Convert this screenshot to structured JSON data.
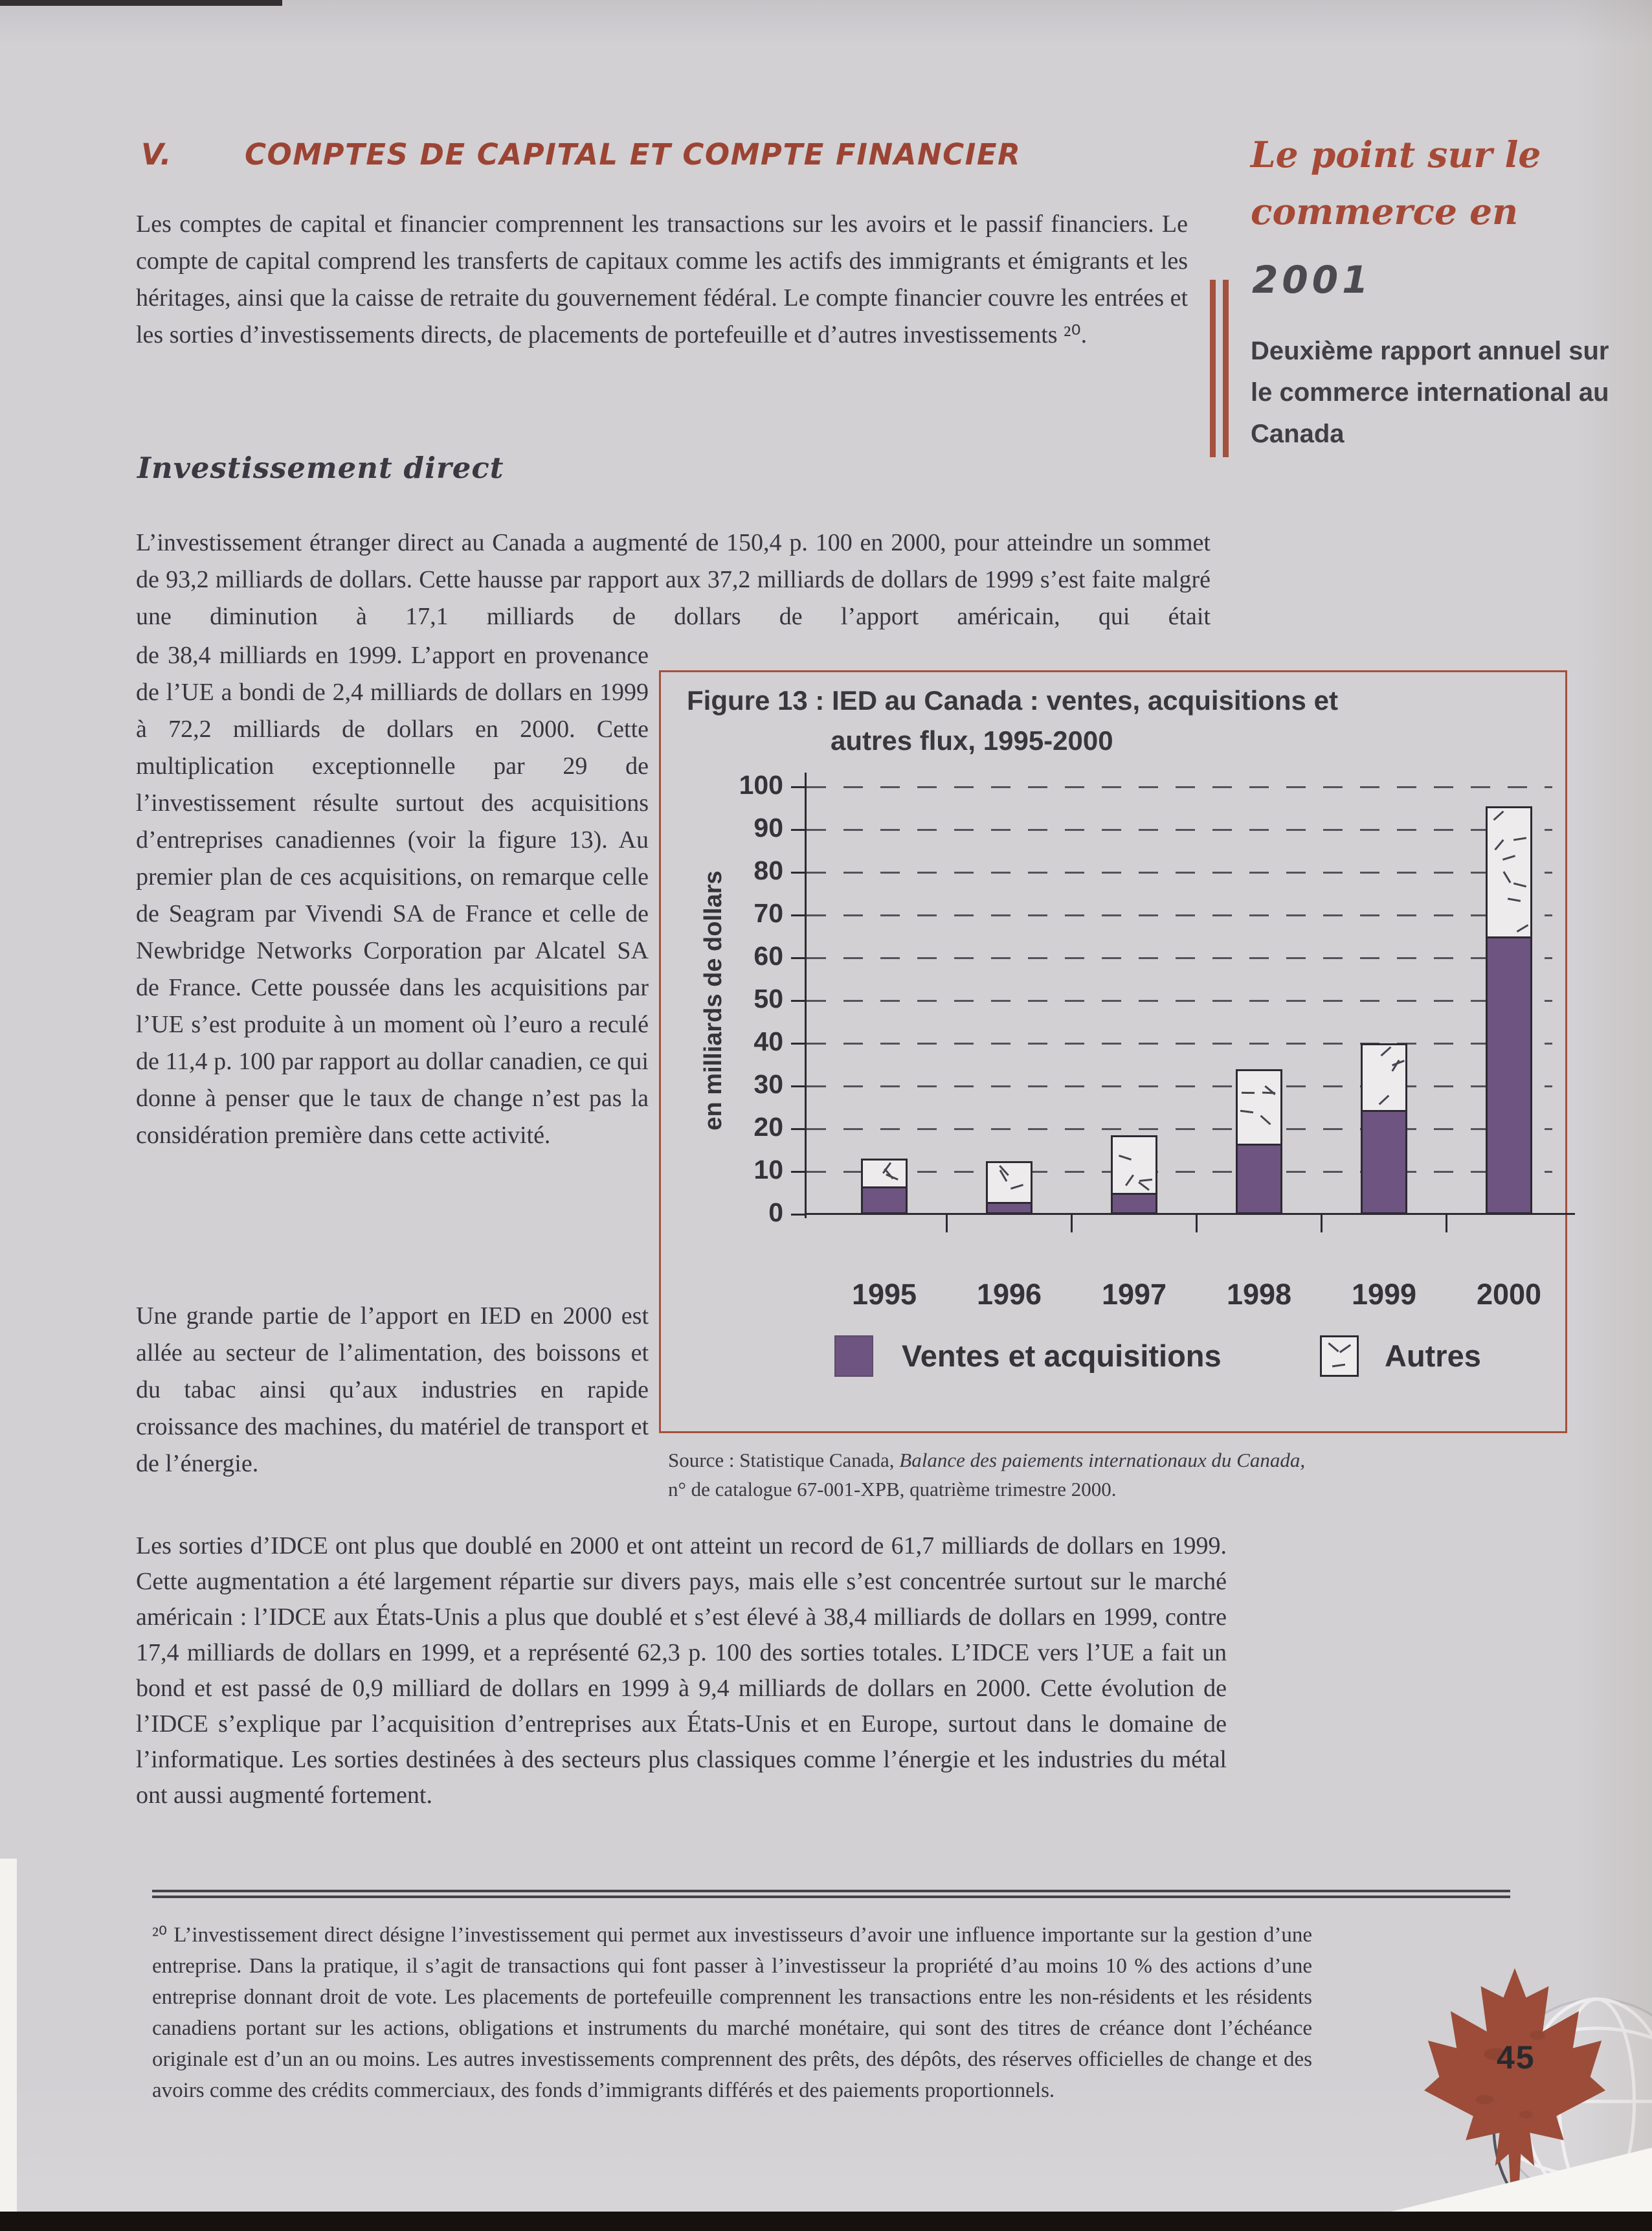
{
  "page": {
    "number": "45"
  },
  "header": {
    "section_number": "V.",
    "title": "COMPTES DE CAPITAL ET COMPTE FINANCIER",
    "accent_color": "#9c4434"
  },
  "sidebar": {
    "masthead_line1": "Le point sur le",
    "masthead_line2": "commerce en",
    "masthead_year": "2001",
    "subtitle": "Deuxième rapport annuel sur le commerce international au Canada",
    "accent_color": "#a4513d"
  },
  "paragraphs": {
    "intro": "Les comptes de capital et financier comprennent les transactions sur les avoirs et le passif financiers. Le compte de capital comprend les transferts de capitaux comme les actifs des immigrants et émigrants et les héritages, ainsi que la caisse de retraite du gouvernement fédéral. Le compte financier couvre les entrées et les sorties d’investissements directs, de placements de portefeuille et d’autres investissements ²⁰.",
    "section_heading": "Investissement direct",
    "direct_investment_intro": "L’investissement étranger direct au Canada a augmenté de 150,4 p. 100 en 2000, pour atteindre un sommet de 93,2 milliards de dollars. Cette hausse par rapport aux 37,2 milliards de dollars de 1999 s’est faite malgré une diminution à 17,1 milliards de dollars de l’apport américain, qui était",
    "direct_investment_left": "de 38,4 milliards en 1999. L’apport en provenance de l’UE a bondi de 2,4 milliards de dollars en 1999 à 72,2 milliards de dollars en 2000. Cette multiplication exceptionnelle par 29 de l’investissement résulte surtout des acquisitions d’entreprises canadiennes (voir la figure 13). Au premier plan de ces acquisitions, on remarque celle de Seagram par Vivendi SA de France et celle de Newbridge Networks Corporation par Alcatel SA de France. Cette poussée dans les acquisitions par l’UE s’est produite à un moment où l’euro a reculé de 11,4 p. 100 par rapport au dollar canadien, ce qui donne à penser que le taux de change n’est pas la considération première dans cette activité.",
    "ied_sectors": "Une grande partie de l’apport en IED en 2000 est allée au secteur de l’alimentation, des boissons et du tabac ainsi qu’aux industries en rapide croissance des machines, du matériel de transport et de l’énergie.",
    "idce": "Les sorties d’IDCE ont plus que doublé en 2000 et ont atteint un record de 61,7 milliards de dollars en 1999. Cette augmentation a été largement répartie sur divers pays, mais elle s’est concentrée surtout sur le marché américain : l’IDCE aux États-Unis a plus que doublé et s’est élevé à 38,4 milliards de dollars en 1999, contre 17,4 milliards de dollars en 1999, et a représenté 62,3 p. 100 des sorties totales. L’IDCE vers l’UE a fait un bond et est passé de 0,9 milliard de dollars en 1999 à 9,4 milliards de dollars en 2000. Cette évolution de l’IDCE s’explique par l’acquisition d’entreprises aux États-Unis et en Europe, surtout dans le domaine de l’informatique. Les sorties destinées à des secteurs plus classiques comme l’énergie et les industries du métal ont aussi augmenté fortement."
  },
  "figure": {
    "title_line1": "Figure 13 : IED au Canada : ventes, acquisitions et",
    "title_line2": "autres flux, 1995-2000",
    "source_prefix": "Source : Statistique Canada, ",
    "source_italic": "Balance des paiements internationaux du Canada,",
    "source_line2": "n° de catalogue 67-001-XPB, quatrième trimestre 2000.",
    "border_color": "#a5503c"
  },
  "chart_data": {
    "type": "bar",
    "stacked": true,
    "title": "Figure 13 : IED au Canada : ventes, acquisitions et autres flux, 1995-2000",
    "categories": [
      "1995",
      "1996",
      "1997",
      "1998",
      "1999",
      "2000"
    ],
    "series": [
      {
        "name": "Ventes et acquisitions",
        "values": [
          6,
          2.5,
          4.5,
          16,
          24,
          64.5
        ],
        "color": "#6e5480",
        "pattern": "solid"
      },
      {
        "name": "Autres",
        "values": [
          7,
          10,
          14,
          18,
          16,
          31
        ],
        "color": "#edebec",
        "pattern": "scattered-dashes"
      }
    ],
    "totals": [
      13,
      12.5,
      18.5,
      34,
      40,
      95.5
    ],
    "xlabel": "",
    "ylabel": "en milliards de dollars",
    "ylim": [
      0,
      100
    ],
    "ytick_step": 10,
    "grid": "dashed-horizontal",
    "legend_position": "bottom"
  },
  "footnote": {
    "text": "²⁰ L’investissement direct désigne l’investissement qui permet aux investisseurs d’avoir une influence importante sur la gestion d’une entreprise. Dans la pratique, il s’agit de transactions qui font passer à l’investisseur la propriété d’au moins 10 % des actions d’une entreprise donnant droit de vote. Les placements de portefeuille comprennent les transactions entre les non-résidents et les résidents canadiens portant sur les actions, obligations et instruments du marché monétaire, qui sont des titres de créance dont l’échéance originale est d’un an ou moins. Les autres investissements comprennent des prêts, des dépôts, des réserves officielles de change et des avoirs comme des crédits commerciaux, des fonds d’immigrants différés et des paiements proportionnels."
  }
}
